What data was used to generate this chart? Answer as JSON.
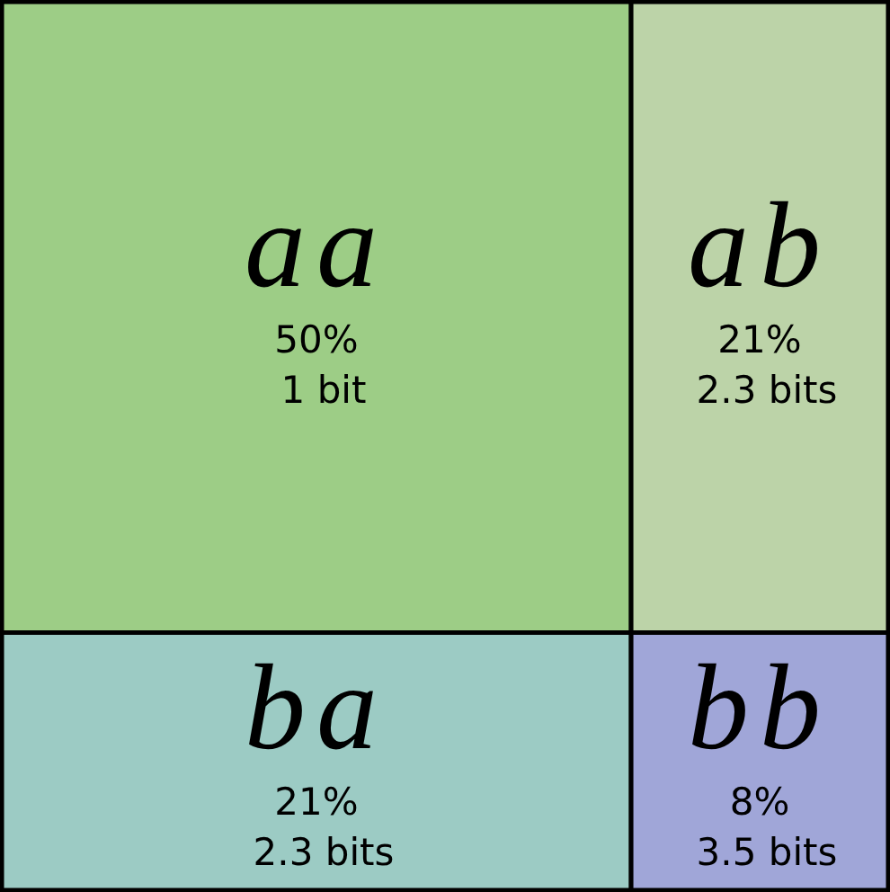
{
  "chart_data": {
    "type": "other",
    "categories": [
      "aa",
      "ab",
      "ba",
      "bb"
    ],
    "values": [
      50,
      21,
      21,
      8
    ],
    "colors": [
      "#9dcd86",
      "#bcd3a8",
      "#9ccbc4",
      "#a0a6d8"
    ],
    "value_labels": [
      "50%",
      "21%",
      "21%",
      "8%"
    ],
    "annotations": [
      {
        "text": "1 bit",
        "x": "aa"
      },
      {
        "text": "2.3 bits",
        "x": "ab"
      },
      {
        "text": "2.3 bits",
        "x": "ba"
      },
      {
        "text": "3.5 bits",
        "x": "bb"
      }
    ]
  }
}
